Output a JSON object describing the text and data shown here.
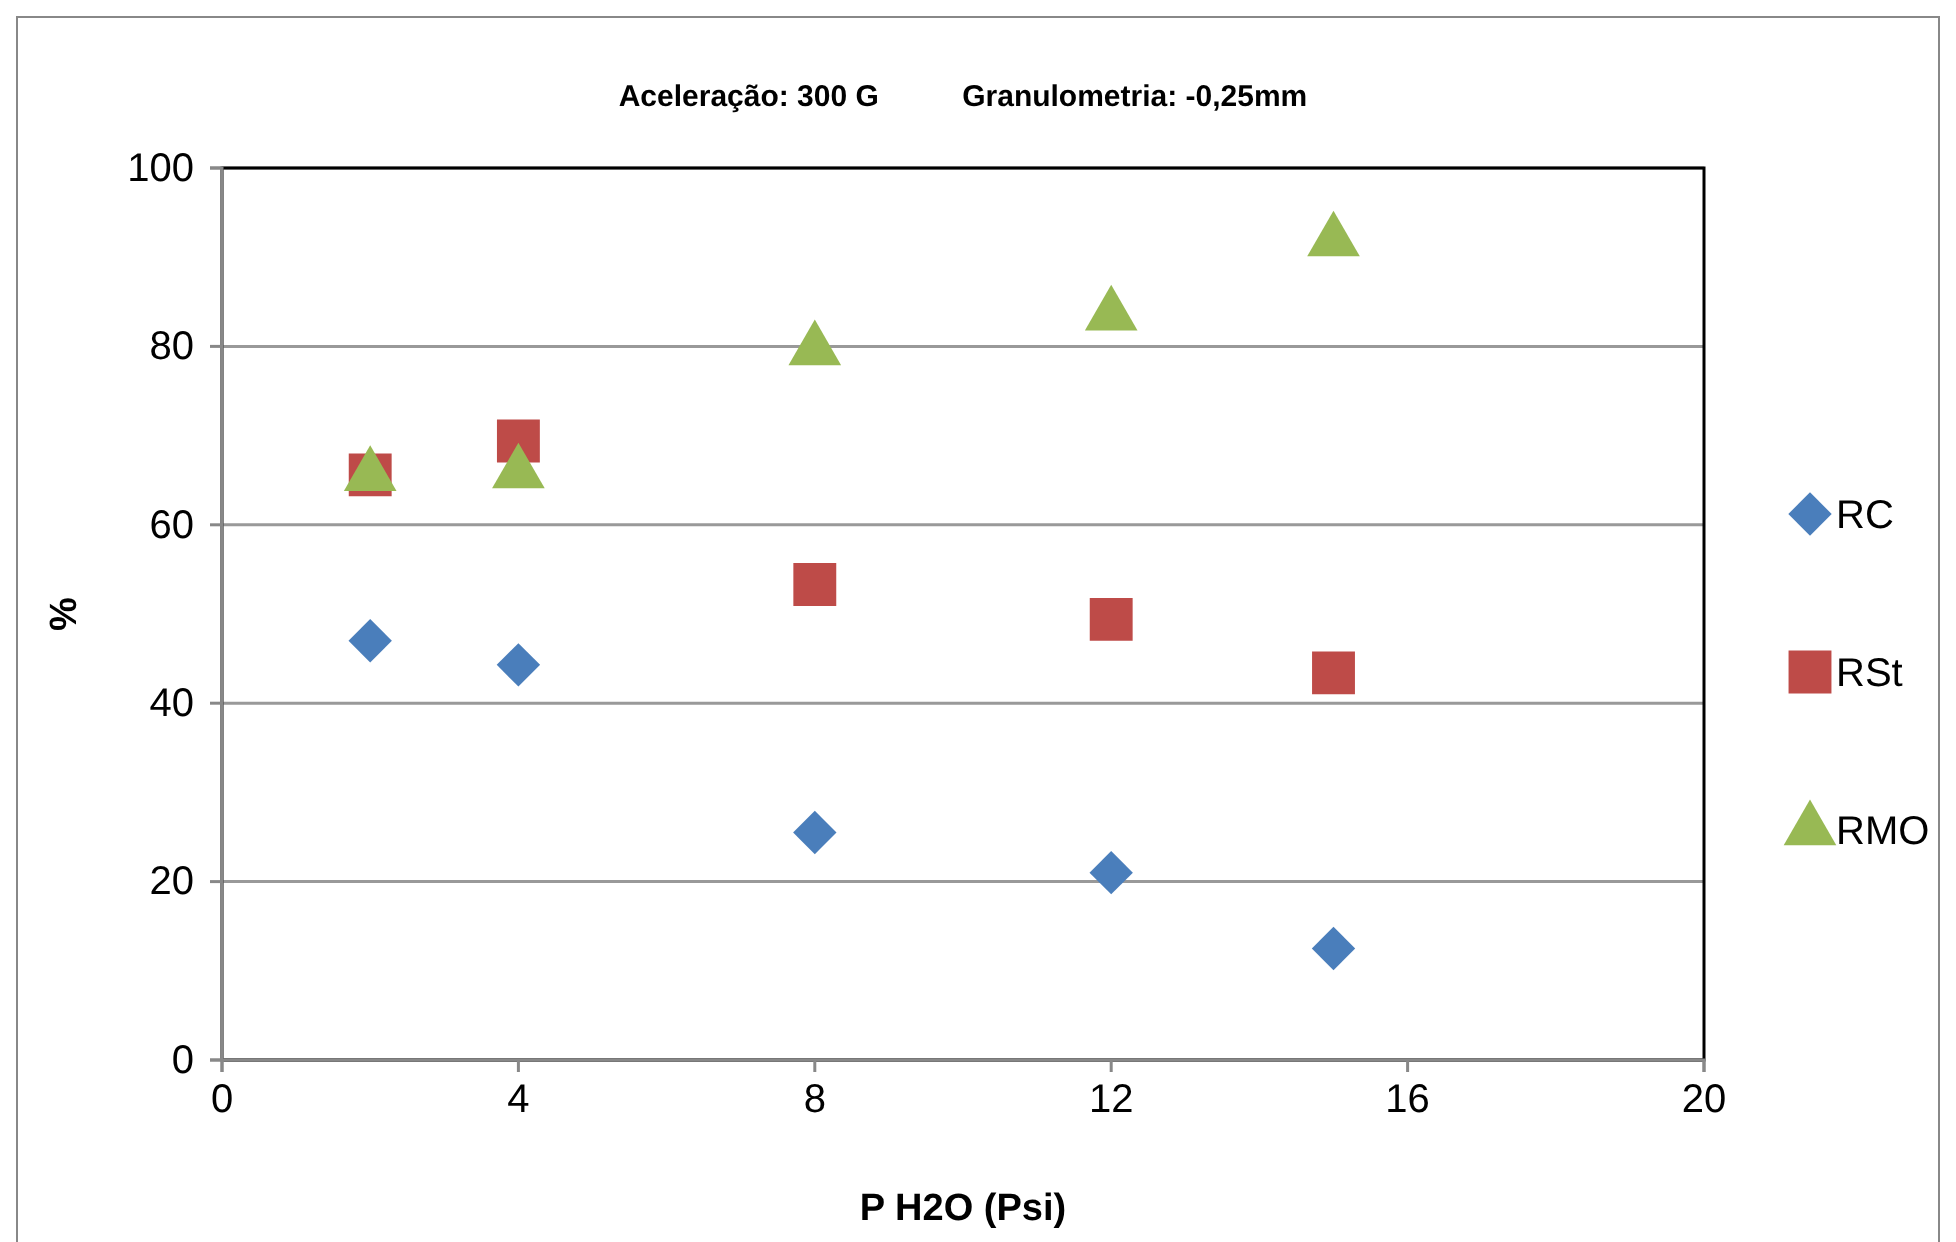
{
  "chart_data": {
    "type": "scatter",
    "title": "Aceleração: 300 G          Granulometria: -0,25mm",
    "xlabel": "P H2O (Psi)",
    "ylabel": "%",
    "xlim": [
      0,
      20
    ],
    "xticks": [
      0,
      4,
      8,
      12,
      16,
      20
    ],
    "ylim": [
      0,
      100
    ],
    "yticks": [
      0,
      20,
      40,
      60,
      80,
      100
    ],
    "grid": "y",
    "legend": "right",
    "series": [
      {
        "name": "RC",
        "color": "#4a7ebb",
        "marker": "diamond",
        "x": [
          2,
          4,
          8,
          12,
          15
        ],
        "values": [
          47,
          44.3,
          25.5,
          21,
          12.5
        ]
      },
      {
        "name": "RSt",
        "color": "#be4b48",
        "marker": "square",
        "x": [
          2,
          4,
          8,
          12,
          15
        ],
        "values": [
          65.6,
          69.4,
          53.3,
          49.4,
          43.4
        ]
      },
      {
        "name": "RMO",
        "color": "#98b954",
        "marker": "triangle",
        "x": [
          2,
          4,
          8,
          12,
          15
        ],
        "values": [
          65.5,
          65.8,
          79.6,
          83.5,
          91.8
        ]
      }
    ]
  }
}
